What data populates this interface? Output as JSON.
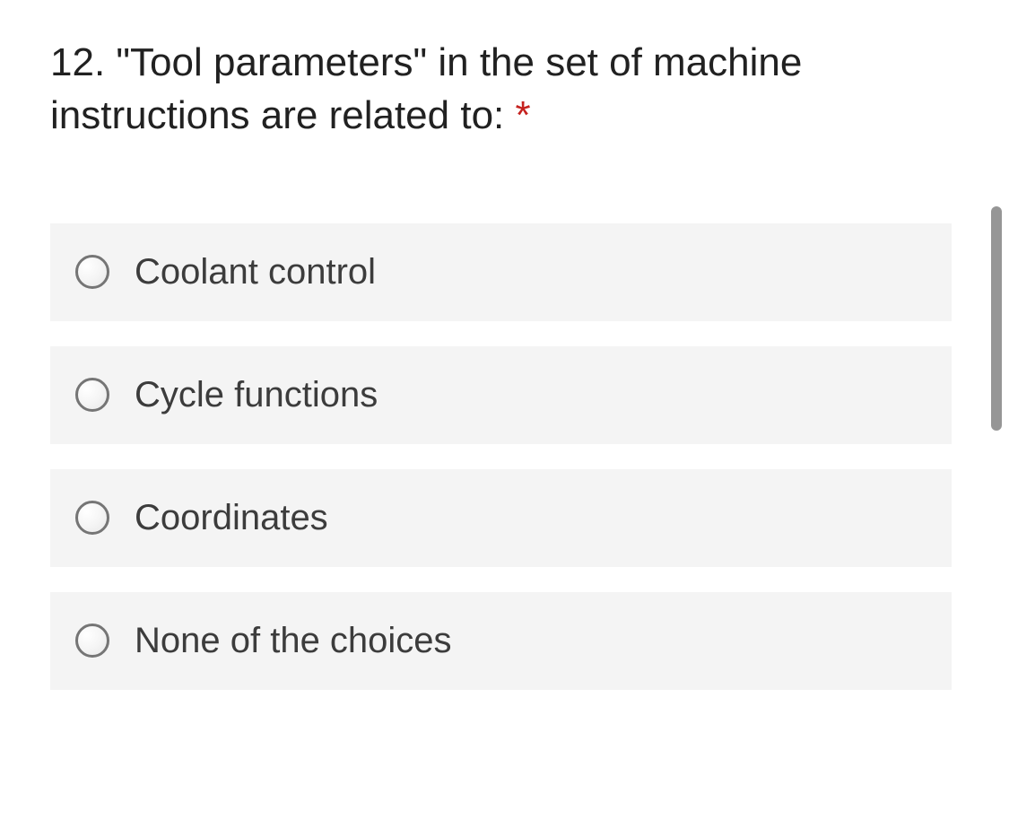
{
  "question": {
    "number": "12.",
    "text": "\"Tool parameters\" in the set of machine instructions are related to:",
    "required_marker": "*"
  },
  "options": [
    {
      "label": "Coolant control"
    },
    {
      "label": "Cycle functions"
    },
    {
      "label": "Coordinates"
    },
    {
      "label": "None of the choices"
    }
  ],
  "colors": {
    "text": "#212121",
    "required": "#c5221f",
    "option_bg": "#f4f4f4",
    "option_text": "#3c3c3c",
    "radio_border": "#757575",
    "scrollbar": "#969696"
  }
}
